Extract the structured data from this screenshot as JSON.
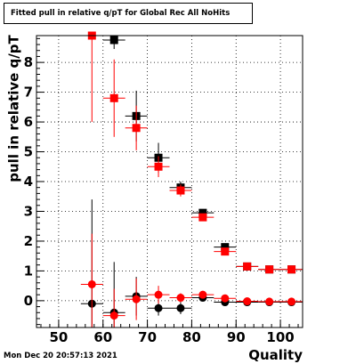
{
  "chart_data": {
    "type": "scatter",
    "title": "Fitted pull in relative q/pT for Global Rec All NoHits",
    "xlabel": "Quality",
    "ylabel": "pull in relative q/pT",
    "xlim": [
      45,
      105
    ],
    "ylim": [
      -0.9,
      8.9
    ],
    "x_ticks": [
      50,
      60,
      70,
      80,
      90,
      100
    ],
    "y_ticks": [
      0,
      1,
      2,
      3,
      4,
      5,
      6,
      7,
      8
    ],
    "grid": true,
    "x_half_width": 2.5,
    "series": [
      {
        "marker": "square",
        "color": "#000000",
        "x": [
          62.5,
          67.5,
          72.5,
          77.5,
          82.5,
          87.5,
          92.5,
          97.5,
          102.5
        ],
        "y": [
          8.75,
          6.2,
          4.8,
          3.8,
          2.95,
          1.8,
          1.15,
          1.05,
          1.05
        ],
        "err": [
          0.3,
          0.85,
          0.5,
          0.2,
          0.12,
          0.1,
          0.06,
          0.06,
          0.06
        ]
      },
      {
        "marker": "square",
        "color": "#ff0000",
        "x": [
          57.5,
          62.5,
          67.5,
          72.5,
          77.5,
          82.5,
          87.5,
          92.5,
          97.5,
          102.5
        ],
        "y": [
          8.9,
          6.8,
          5.8,
          4.5,
          3.7,
          2.8,
          1.65,
          1.15,
          1.05,
          1.05
        ],
        "err": [
          2.9,
          1.3,
          0.75,
          0.35,
          0.2,
          0.12,
          0.1,
          0.06,
          0.06,
          0.06
        ]
      },
      {
        "marker": "circle",
        "color": "#000000",
        "x": [
          57.5,
          62.5,
          67.5,
          72.5,
          77.5,
          82.5,
          87.5,
          92.5,
          97.5,
          102.5
        ],
        "y": [
          -0.1,
          -0.4,
          0.15,
          -0.25,
          -0.25,
          0.1,
          -0.05,
          -0.05,
          -0.05,
          -0.05
        ],
        "err": [
          3.5,
          1.7,
          0.65,
          0.25,
          0.2,
          0.1,
          0.08,
          0.05,
          0.05,
          0.05
        ]
      },
      {
        "marker": "circle",
        "color": "#ff0000",
        "x": [
          57.5,
          62.5,
          67.5,
          72.5,
          77.5,
          82.5,
          87.5,
          92.5,
          97.5,
          102.5
        ],
        "y": [
          0.55,
          -0.5,
          0.05,
          0.2,
          0.1,
          0.2,
          0.08,
          -0.02,
          -0.03,
          -0.03
        ],
        "err": [
          1.7,
          0.9,
          0.7,
          0.3,
          0.15,
          0.1,
          0.06,
          0.05,
          0.05,
          0.05
        ]
      }
    ]
  },
  "timestamp": "Mon Dec 20 20:57:13 2021"
}
